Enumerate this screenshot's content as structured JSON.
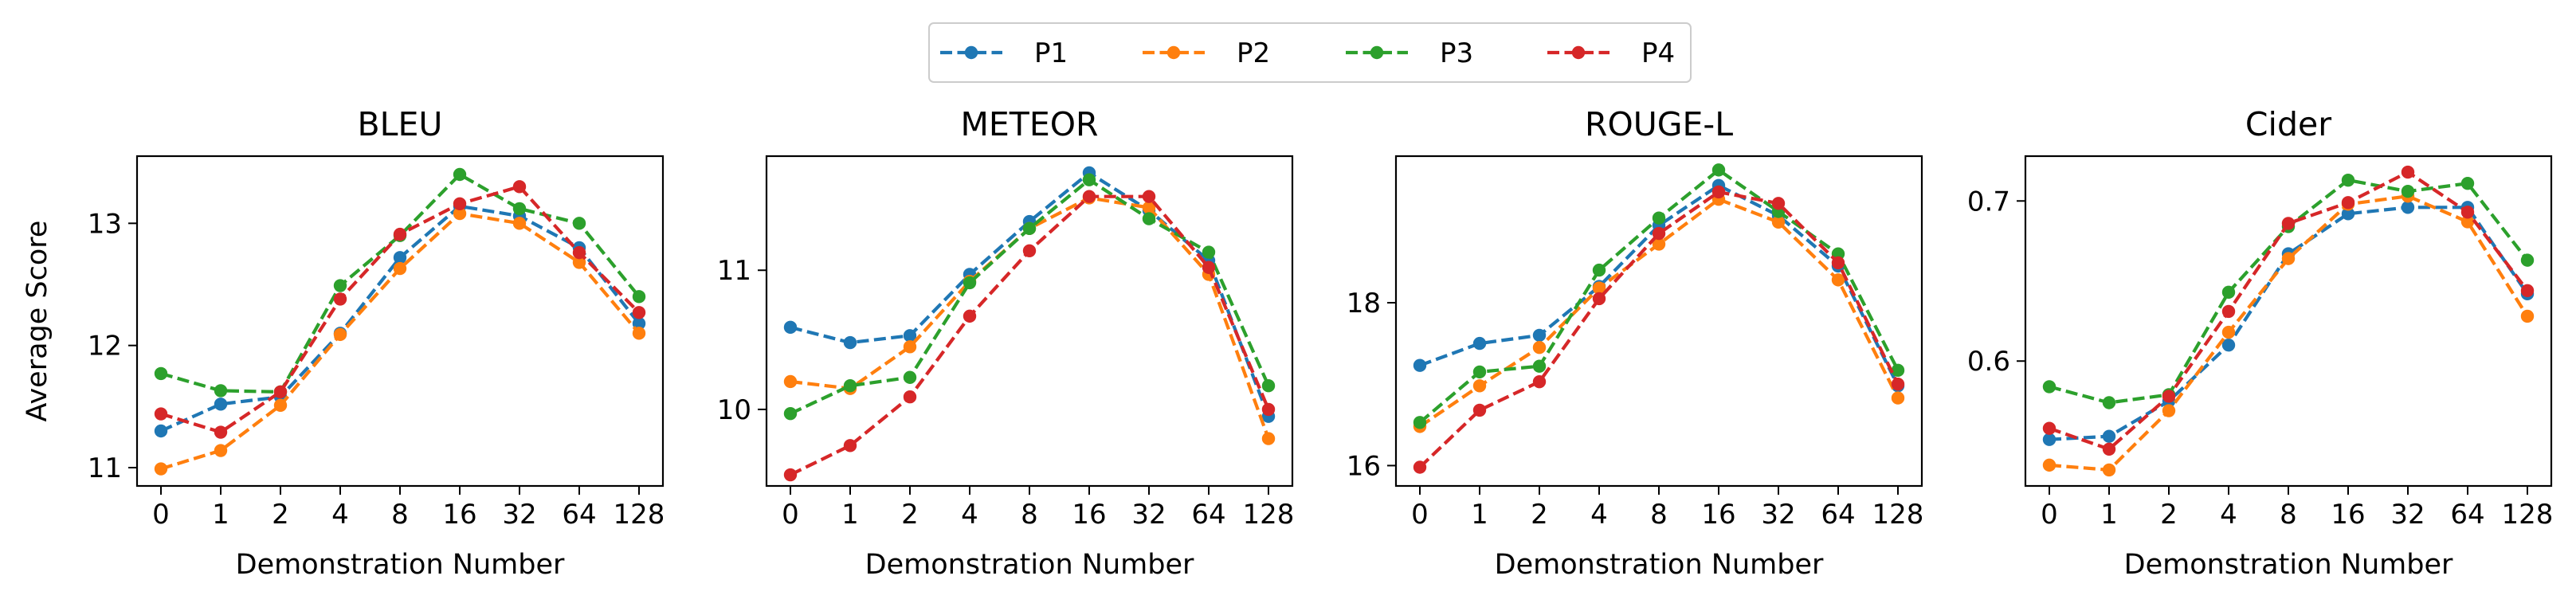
{
  "legend": {
    "items": [
      {
        "name": "P1",
        "color": "#1f77b4"
      },
      {
        "name": "P2",
        "color": "#ff7f0e"
      },
      {
        "name": "P3",
        "color": "#2ca02c"
      },
      {
        "name": "P4",
        "color": "#d62728"
      }
    ]
  },
  "chart_data": [
    {
      "type": "line",
      "title": "BLEU",
      "xlabel": "Demonstration Number",
      "ylabel": "Average Score",
      "categories": [
        "0",
        "1",
        "2",
        "4",
        "8",
        "16",
        "32",
        "64",
        "128"
      ],
      "ylim": [
        10.85,
        13.55
      ],
      "yticks": [
        11,
        12,
        13
      ],
      "series": [
        {
          "name": "P1",
          "values": [
            11.3,
            11.52,
            11.58,
            12.1,
            12.72,
            13.14,
            13.06,
            12.8,
            12.18
          ]
        },
        {
          "name": "P2",
          "values": [
            10.99,
            11.14,
            11.51,
            12.09,
            12.63,
            13.08,
            13.0,
            12.68,
            12.1
          ]
        },
        {
          "name": "P3",
          "values": [
            11.77,
            11.63,
            11.62,
            12.49,
            12.9,
            13.4,
            13.12,
            13.0,
            12.4
          ]
        },
        {
          "name": "P4",
          "values": [
            11.44,
            11.29,
            11.62,
            12.38,
            12.91,
            13.16,
            13.3,
            12.76,
            12.27
          ]
        }
      ]
    },
    {
      "type": "line",
      "title": "METEOR",
      "xlabel": "Demonstration Number",
      "ylabel": "",
      "categories": [
        "0",
        "1",
        "2",
        "4",
        "8",
        "16",
        "32",
        "64",
        "128"
      ],
      "ylim": [
        9.45,
        11.82
      ],
      "yticks": [
        10,
        11
      ],
      "series": [
        {
          "name": "P1",
          "values": [
            10.59,
            10.48,
            10.53,
            10.97,
            11.35,
            11.7,
            11.43,
            11.07,
            9.95
          ]
        },
        {
          "name": "P2",
          "values": [
            10.2,
            10.15,
            10.45,
            10.92,
            11.3,
            11.52,
            11.45,
            10.97,
            9.79
          ]
        },
        {
          "name": "P3",
          "values": [
            9.97,
            10.17,
            10.23,
            10.91,
            11.3,
            11.65,
            11.37,
            11.13,
            10.17
          ]
        },
        {
          "name": "P4",
          "values": [
            9.53,
            9.74,
            10.09,
            10.67,
            11.14,
            11.53,
            11.53,
            11.02,
            10.0
          ]
        }
      ]
    },
    {
      "type": "line",
      "title": "ROUGE-L",
      "xlabel": "Demonstration Number",
      "ylabel": "",
      "categories": [
        "0",
        "1",
        "2",
        "4",
        "8",
        "16",
        "32",
        "64",
        "128"
      ],
      "ylim": [
        15.75,
        19.8
      ],
      "yticks": [
        16,
        18
      ],
      "series": [
        {
          "name": "P1",
          "values": [
            17.23,
            17.5,
            17.6,
            18.2,
            18.95,
            19.44,
            19.07,
            18.45,
            16.98
          ]
        },
        {
          "name": "P2",
          "values": [
            16.48,
            16.98,
            17.45,
            18.18,
            18.72,
            19.27,
            18.99,
            18.28,
            16.83
          ]
        },
        {
          "name": "P3",
          "values": [
            16.53,
            17.15,
            17.22,
            18.4,
            19.04,
            19.63,
            19.12,
            18.6,
            17.17
          ]
        },
        {
          "name": "P4",
          "values": [
            15.98,
            16.68,
            17.03,
            18.05,
            18.85,
            19.36,
            19.22,
            18.49,
            17.0
          ]
        }
      ]
    },
    {
      "type": "line",
      "title": "Cider",
      "xlabel": "Demonstration Number",
      "ylabel": "",
      "categories": [
        "0",
        "1",
        "2",
        "4",
        "8",
        "16",
        "32",
        "64",
        "128"
      ],
      "ylim": [
        0.522,
        0.728
      ],
      "yticks": [
        0.6,
        0.7
      ],
      "series": [
        {
          "name": "P1",
          "values": [
            0.551,
            0.553,
            0.575,
            0.61,
            0.667,
            0.692,
            0.696,
            0.696,
            0.642
          ]
        },
        {
          "name": "P2",
          "values": [
            0.535,
            0.532,
            0.569,
            0.618,
            0.664,
            0.698,
            0.703,
            0.687,
            0.628
          ]
        },
        {
          "name": "P3",
          "values": [
            0.584,
            0.574,
            0.579,
            0.643,
            0.684,
            0.713,
            0.706,
            0.711,
            0.663
          ]
        },
        {
          "name": "P4",
          "values": [
            0.558,
            0.545,
            0.578,
            0.631,
            0.686,
            0.699,
            0.718,
            0.693,
            0.644
          ]
        }
      ]
    }
  ]
}
